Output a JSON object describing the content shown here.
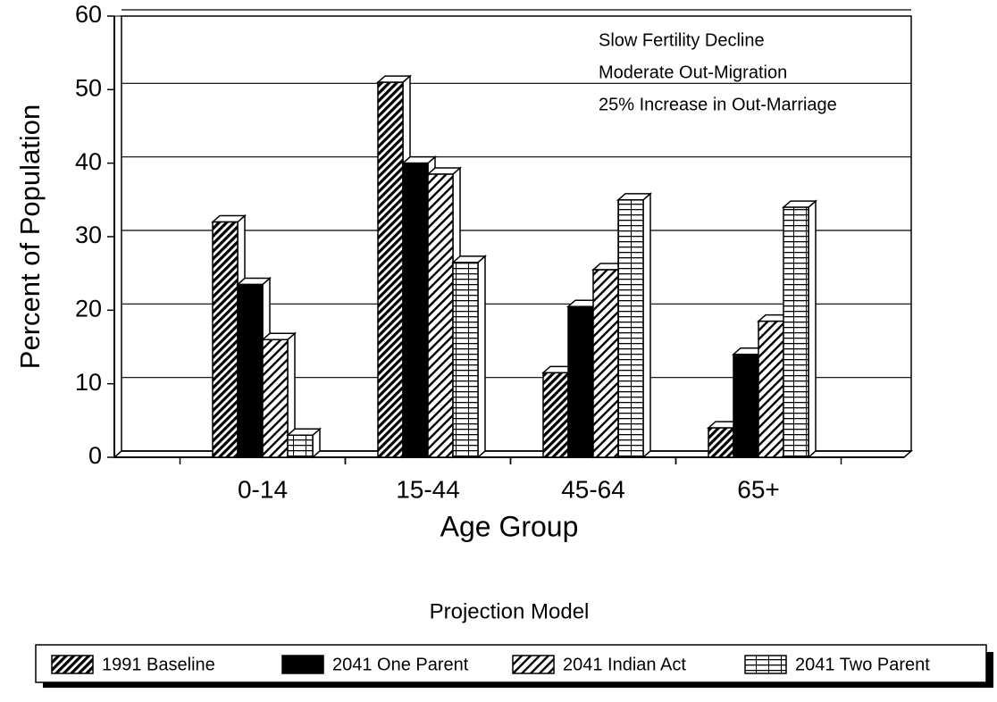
{
  "chart_data": {
    "type": "bar",
    "y_label": "Percent of Population",
    "x_label": "Age Group",
    "legend_title": "Projection Model",
    "annotations": [
      "Slow Fertility Decline",
      "Moderate Out-Migration",
      "25% Increase in Out-Marriage"
    ],
    "categories": [
      "0-14",
      "15-44",
      "45-64",
      "65+"
    ],
    "series": [
      {
        "name": "1991 Baseline",
        "color": "#000000",
        "pattern": "dense-hatch",
        "values": [
          32,
          51,
          11.5,
          4
        ]
      },
      {
        "name": "2041 One Parent",
        "color": "#000000",
        "pattern": "solid",
        "values": [
          23.5,
          40,
          20.5,
          14
        ]
      },
      {
        "name": "2041 Indian Act",
        "color": "#000000",
        "pattern": "hatch",
        "values": [
          16,
          38.5,
          25.5,
          18.5
        ]
      },
      {
        "name": "2041 Two Parent",
        "color": "#000000",
        "pattern": "grid",
        "values": [
          3,
          26.5,
          35,
          34
        ]
      }
    ],
    "ylim": [
      0,
      60
    ],
    "yticks": [
      0,
      10,
      20,
      30,
      40,
      50,
      60
    ],
    "grid": true,
    "legend": "bottom"
  }
}
